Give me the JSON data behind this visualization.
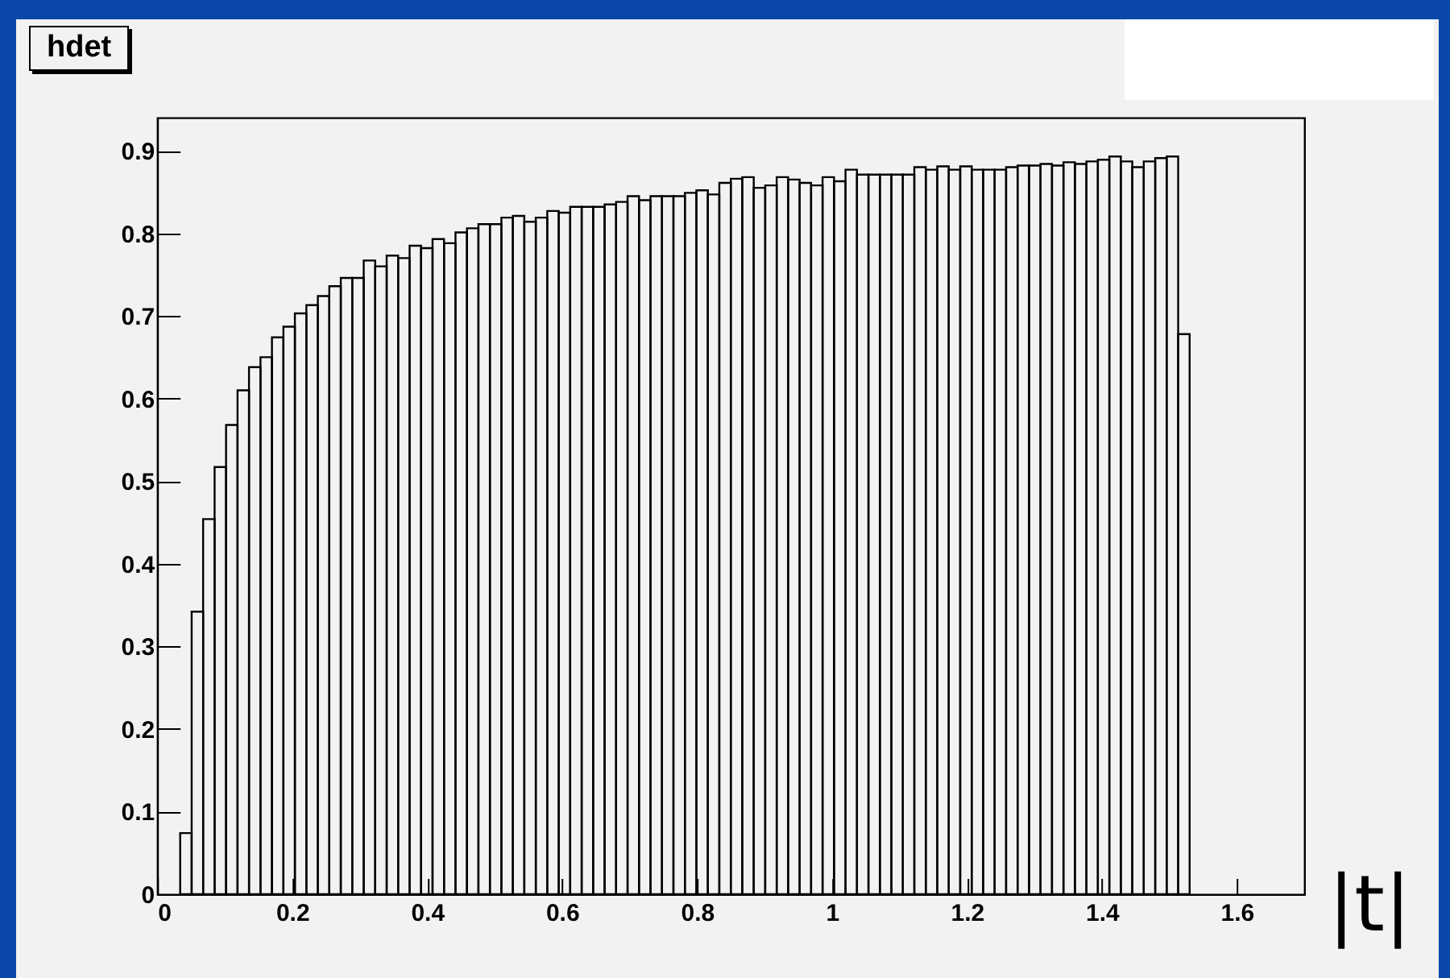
{
  "chart_data": {
    "type": "histogram",
    "title": "hdet",
    "xlabel": "|t|",
    "bins": [
      0.034,
      0.051,
      0.068,
      0.085,
      0.102,
      0.119,
      0.136,
      0.153,
      0.17,
      0.187,
      0.204,
      0.221,
      0.238,
      0.255,
      0.272,
      0.289,
      0.306,
      0.323,
      0.34,
      0.357,
      0.374,
      0.391,
      0.408,
      0.425,
      0.442,
      0.459,
      0.476,
      0.493,
      0.51,
      0.527,
      0.544,
      0.561,
      0.578,
      0.595,
      0.612,
      0.629,
      0.646,
      0.663,
      0.68,
      0.697,
      0.714,
      0.731,
      0.748,
      0.765,
      0.782,
      0.799,
      0.816,
      0.833,
      0.85,
      0.867,
      0.884,
      0.901,
      0.918,
      0.935,
      0.952,
      0.969,
      0.986,
      1.003,
      1.02,
      1.037,
      1.054,
      1.071,
      1.088,
      1.105,
      1.122,
      1.139,
      1.156,
      1.173,
      1.19,
      1.207,
      1.224,
      1.241,
      1.258,
      1.275,
      1.292,
      1.309,
      1.326,
      1.343,
      1.36,
      1.377,
      1.394,
      1.411,
      1.428,
      1.445,
      1.462,
      1.479,
      1.496,
      1.513,
      1.53
    ],
    "values": [
      0.074,
      0.342,
      0.454,
      0.517,
      0.568,
      0.61,
      0.638,
      0.65,
      0.674,
      0.687,
      0.703,
      0.713,
      0.724,
      0.736,
      0.746,
      0.746,
      0.767,
      0.76,
      0.773,
      0.77,
      0.785,
      0.782,
      0.793,
      0.788,
      0.801,
      0.806,
      0.811,
      0.811,
      0.819,
      0.821,
      0.814,
      0.819,
      0.827,
      0.825,
      0.832,
      0.832,
      0.832,
      0.835,
      0.838,
      0.845,
      0.84,
      0.845,
      0.845,
      0.845,
      0.849,
      0.852,
      0.847,
      0.861,
      0.866,
      0.868,
      0.855,
      0.858,
      0.868,
      0.865,
      0.861,
      0.858,
      0.868,
      0.863,
      0.877,
      0.871,
      0.871,
      0.871,
      0.871,
      0.871,
      0.88,
      0.877,
      0.881,
      0.877,
      0.881,
      0.877,
      0.877,
      0.877,
      0.88,
      0.882,
      0.882,
      0.884,
      0.882,
      0.886,
      0.884,
      0.887,
      0.889,
      0.893,
      0.887,
      0.88,
      0.887,
      0.891,
      0.893,
      0.678
    ],
    "color": "#000000",
    "xlim": [
      0,
      1.7
    ],
    "xticks": [
      0,
      0.2,
      0.4,
      0.6,
      0.8,
      1,
      1.2,
      1.4,
      1.6
    ],
    "ylim": [
      0,
      0.94
    ],
    "yticks": [
      0,
      0.1,
      0.2,
      0.3,
      0.4,
      0.5,
      0.6,
      0.7,
      0.8,
      0.9
    ]
  }
}
